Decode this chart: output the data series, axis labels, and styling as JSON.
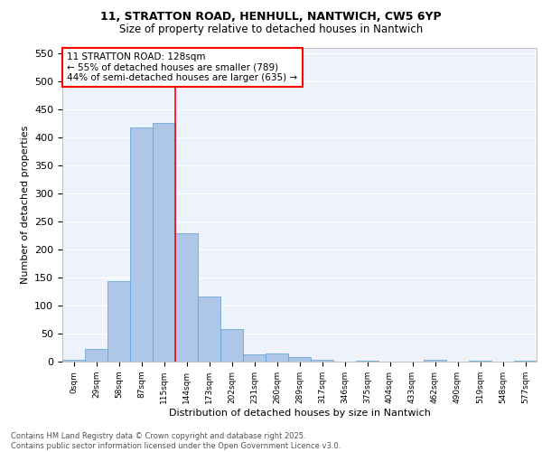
{
  "title_line1": "11, STRATTON ROAD, HENHULL, NANTWICH, CW5 6YP",
  "title_line2": "Size of property relative to detached houses in Nantwich",
  "xlabel": "Distribution of detached houses by size in Nantwich",
  "ylabel": "Number of detached properties",
  "bin_labels": [
    "0sqm",
    "29sqm",
    "58sqm",
    "87sqm",
    "115sqm",
    "144sqm",
    "173sqm",
    "202sqm",
    "231sqm",
    "260sqm",
    "289sqm",
    "317sqm",
    "346sqm",
    "375sqm",
    "404sqm",
    "433sqm",
    "462sqm",
    "490sqm",
    "519sqm",
    "548sqm",
    "577sqm"
  ],
  "bar_values": [
    3,
    22,
    143,
    418,
    425,
    229,
    116,
    58,
    13,
    15,
    8,
    3,
    0,
    1,
    0,
    0,
    3,
    0,
    2,
    0,
    2
  ],
  "bar_color": "#aec6e8",
  "bar_edge_color": "#5a9fd4",
  "vline_x": 4.5,
  "vline_color": "red",
  "ylim": [
    0,
    560
  ],
  "yticks": [
    0,
    50,
    100,
    150,
    200,
    250,
    300,
    350,
    400,
    450,
    500,
    550
  ],
  "annotation_text": "11 STRATTON ROAD: 128sqm\n← 55% of detached houses are smaller (789)\n44% of semi-detached houses are larger (635) →",
  "footer_line1": "Contains HM Land Registry data © Crown copyright and database right 2025.",
  "footer_line2": "Contains public sector information licensed under the Open Government Licence v3.0.",
  "bg_color": "#eef3fb",
  "grid_color": "#ffffff"
}
